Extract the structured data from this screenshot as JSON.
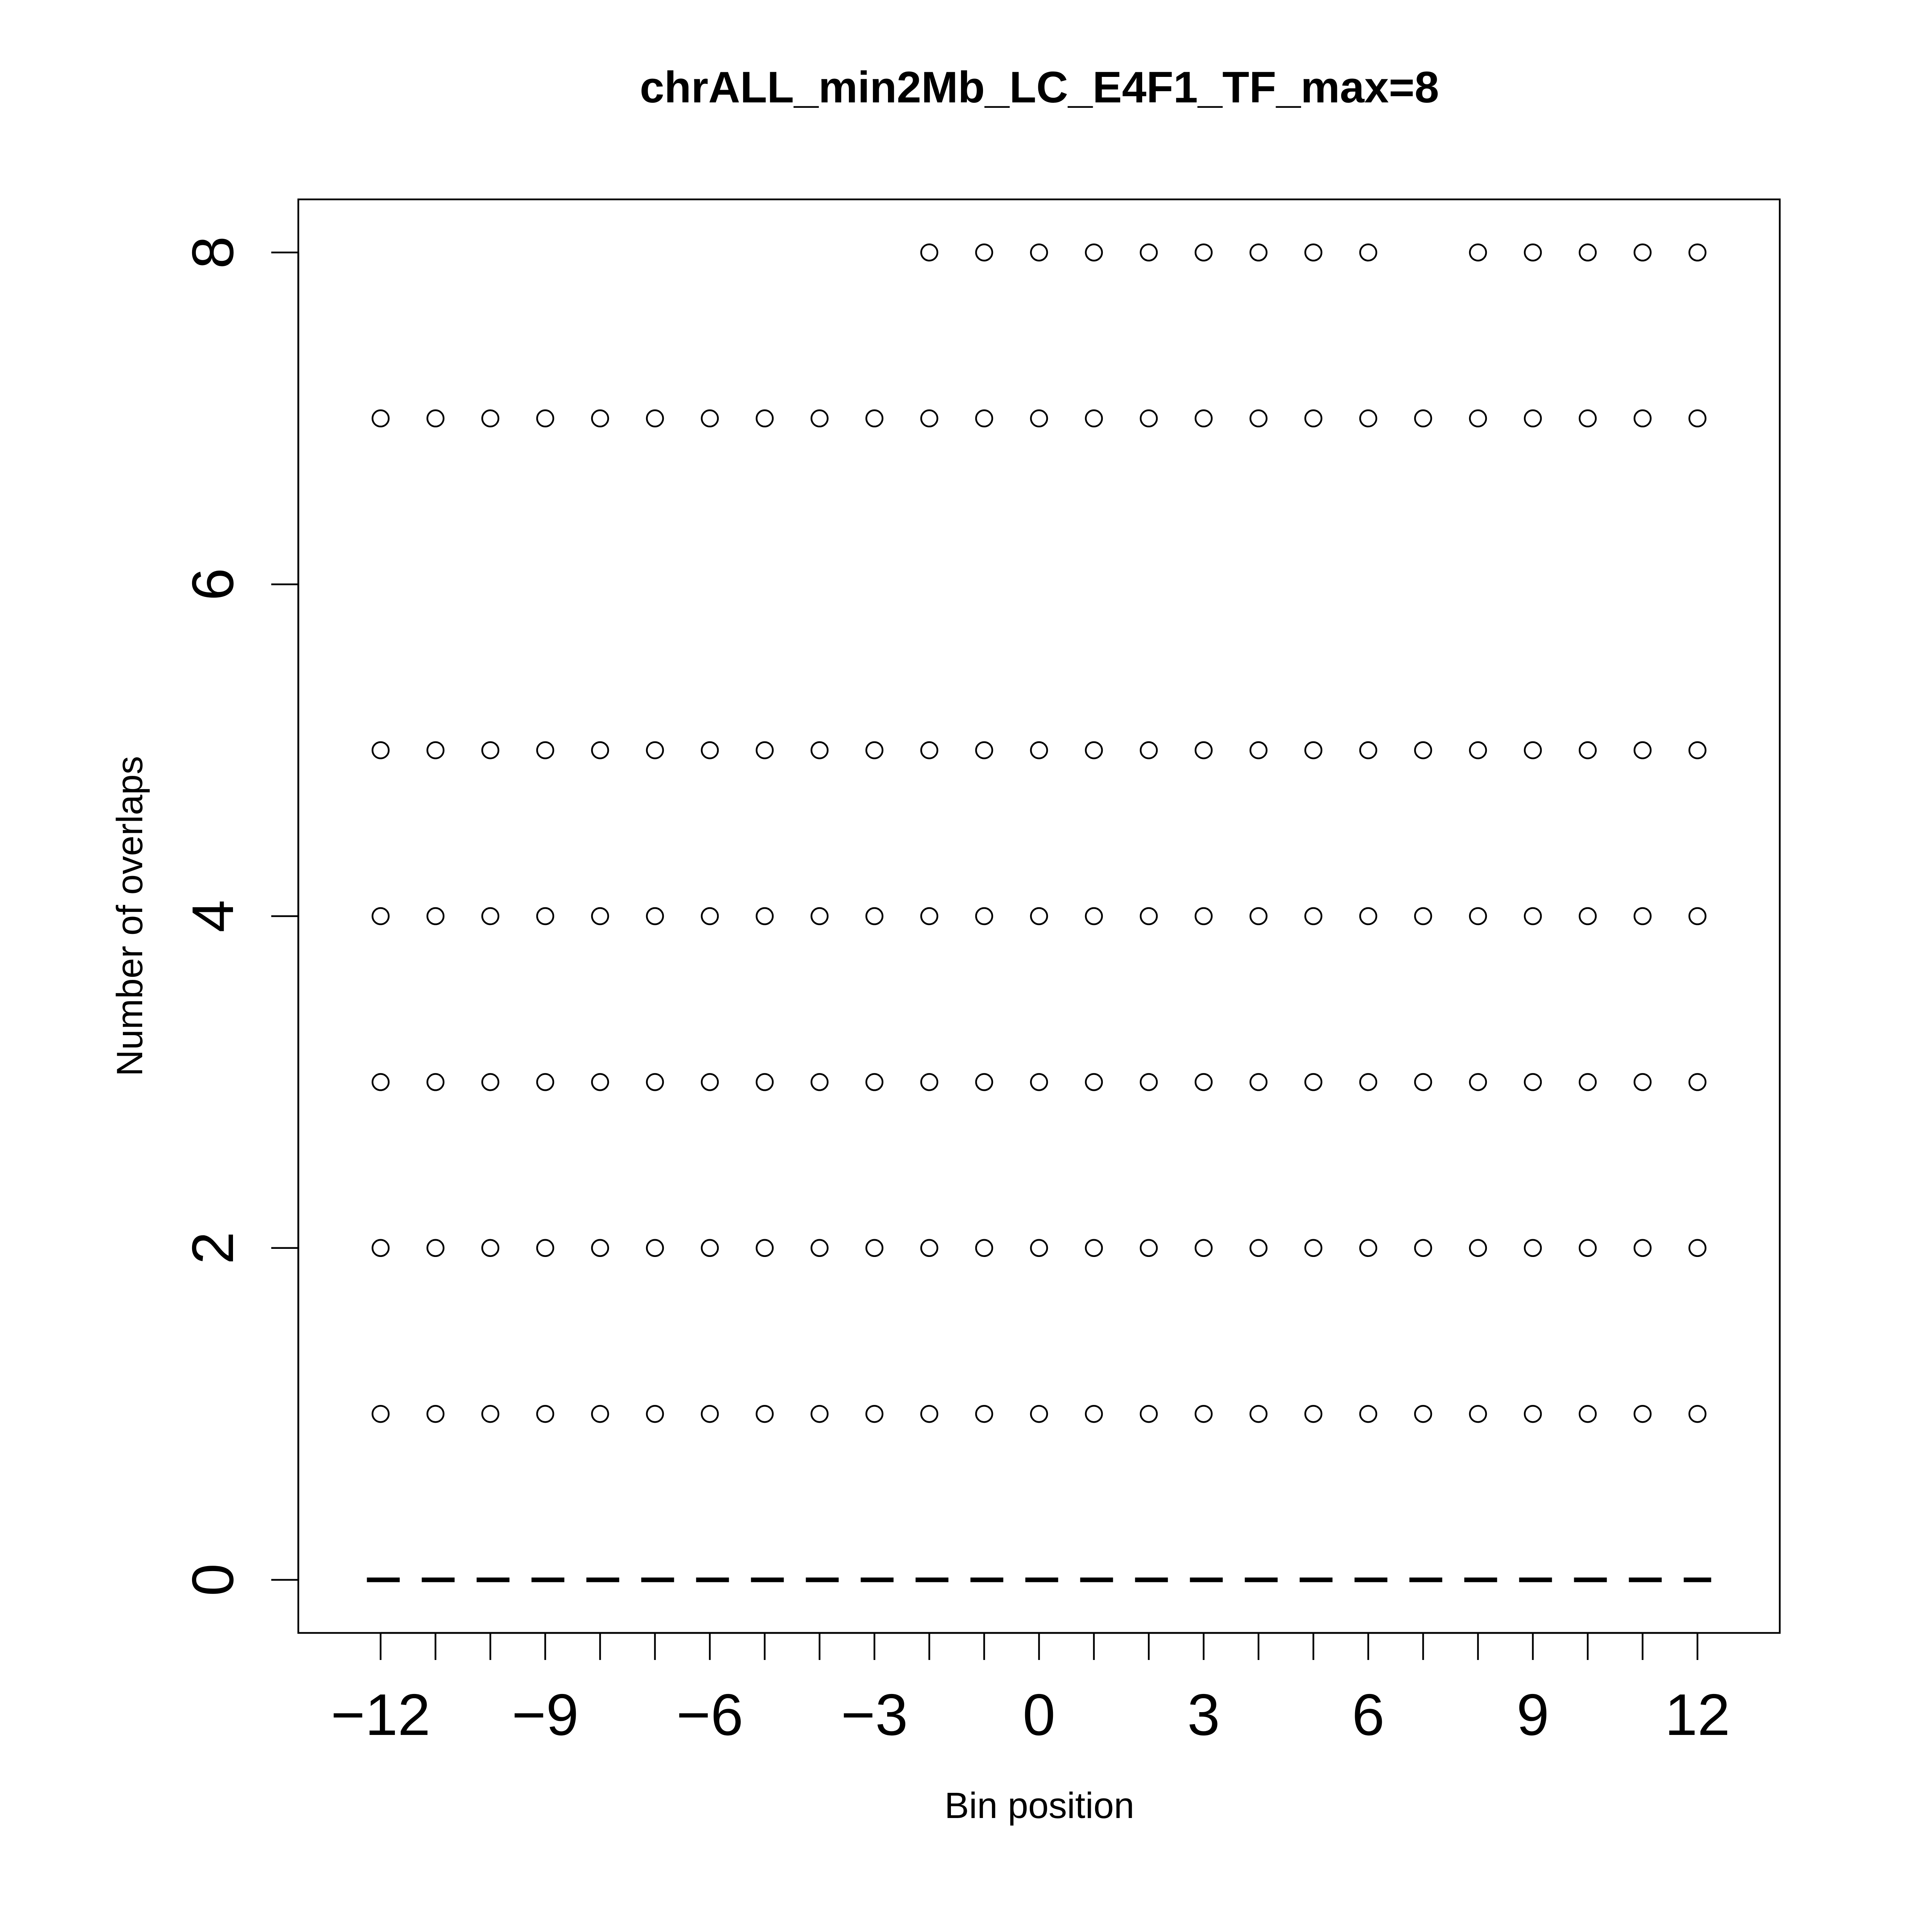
{
  "chart_data": {
    "type": "scatter",
    "title": "chrALL_min2Mb_LC_E4F1_TF_max=8",
    "xlabel": "Bin position",
    "ylabel": "Number of overlaps",
    "xlim": [
      -13.5,
      13.5
    ],
    "ylim": [
      -0.32,
      8.32
    ],
    "x_major_ticks": [
      -12,
      -9,
      -6,
      -3,
      0,
      3,
      6,
      9,
      12
    ],
    "x_major_tick_labels": [
      "−12",
      "−9",
      "−6",
      "−3",
      "0",
      "3",
      "6",
      "9",
      "12"
    ],
    "x_minor_ticks": [
      -12,
      -11,
      -10,
      -9,
      -8,
      -7,
      -6,
      -5,
      -4,
      -3,
      -2,
      -1,
      0,
      1,
      2,
      3,
      4,
      5,
      6,
      7,
      8,
      9,
      10,
      11,
      12
    ],
    "y_ticks": [
      0,
      2,
      4,
      6,
      8
    ],
    "y_tick_labels": [
      "0",
      "2",
      "4",
      "6",
      "8"
    ],
    "grid": false,
    "legend": "none",
    "marker": "open-circle",
    "color": "#000000",
    "baseline": {
      "y": 0,
      "style": "dashed",
      "x_range": [
        -12.25,
        12.25
      ]
    },
    "x": [
      -12,
      -11,
      -10,
      -9,
      -8,
      -7,
      -6,
      -5,
      -4,
      -3,
      -2,
      -1,
      0,
      1,
      2,
      3,
      4,
      5,
      6,
      7,
      8,
      9,
      10,
      11,
      12
    ],
    "series": [
      {
        "y": 1,
        "x": [
          -12,
          -11,
          -10,
          -9,
          -8,
          -7,
          -6,
          -5,
          -4,
          -3,
          -2,
          -1,
          0,
          1,
          2,
          3,
          4,
          5,
          6,
          7,
          8,
          9,
          10,
          11,
          12
        ]
      },
      {
        "y": 2,
        "x": [
          -12,
          -11,
          -10,
          -9,
          -8,
          -7,
          -6,
          -5,
          -4,
          -3,
          -2,
          -1,
          0,
          1,
          2,
          3,
          4,
          5,
          6,
          7,
          8,
          9,
          10,
          11,
          12
        ]
      },
      {
        "y": 3,
        "x": [
          -12,
          -11,
          -10,
          -9,
          -8,
          -7,
          -6,
          -5,
          -4,
          -3,
          -2,
          -1,
          0,
          1,
          2,
          3,
          4,
          5,
          6,
          7,
          8,
          9,
          10,
          11,
          12
        ]
      },
      {
        "y": 4,
        "x": [
          -12,
          -11,
          -10,
          -9,
          -8,
          -7,
          -6,
          -5,
          -4,
          -3,
          -2,
          -1,
          0,
          1,
          2,
          3,
          4,
          5,
          6,
          7,
          8,
          9,
          10,
          11,
          12
        ]
      },
      {
        "y": 5,
        "x": [
          -12,
          -11,
          -10,
          -9,
          -8,
          -7,
          -6,
          -5,
          -4,
          -3,
          -2,
          -1,
          0,
          1,
          2,
          3,
          4,
          5,
          6,
          7,
          8,
          9,
          10,
          11,
          12
        ]
      },
      {
        "y": 7,
        "x": [
          -12,
          -11,
          -10,
          -9,
          -8,
          -7,
          -6,
          -5,
          -4,
          -3,
          -2,
          -1,
          0,
          1,
          2,
          3,
          4,
          5,
          6,
          7,
          8,
          9,
          10,
          11,
          12
        ]
      },
      {
        "y": 8,
        "x": [
          -2,
          -1,
          0,
          1,
          2,
          3,
          4,
          5,
          6,
          8,
          9,
          10,
          11,
          12
        ]
      }
    ]
  }
}
